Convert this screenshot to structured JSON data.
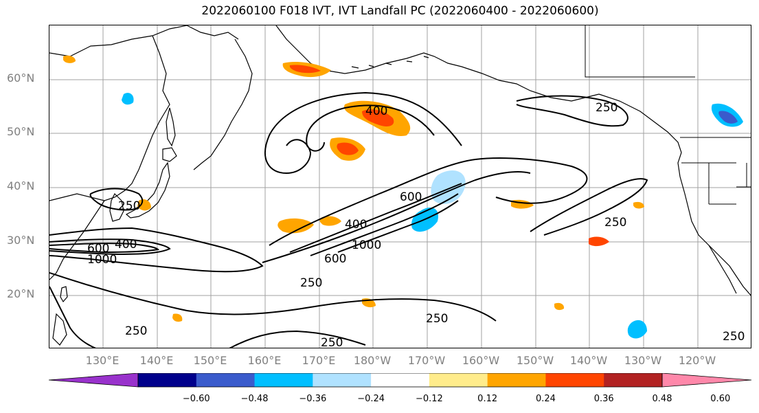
{
  "title": "2022060100 F018 IVT, IVT Landfall PC (2022060400 - 2022060600)",
  "lat_labels": [
    "60°N",
    "50°N",
    "40°N",
    "30°N",
    "20°N"
  ],
  "lon_labels": [
    "130°E",
    "140°E",
    "150°E",
    "160°E",
    "170°E",
    "180°W",
    "170°W",
    "160°W",
    "150°W",
    "140°W",
    "130°W",
    "120°W"
  ],
  "contour_labels": {
    "ivt_250_japan": "250",
    "ivt_600_west": "600",
    "ivt_400_west": "400",
    "ivt_1000_west": "1000",
    "ivt_400_north": "400",
    "ivt_250_alaska": "250",
    "ivt_600_mid": "600",
    "ivt_400_mid": "400",
    "ivt_1000_mid": "1000",
    "ivt_600_ar": "600",
    "ivt_250_ar": "250",
    "ivt_250_east": "250",
    "ivt_250_south": "250",
    "ivt_250_sw": "250",
    "ivt_250_bottom": "250",
    "ivt_250_corner": "250"
  },
  "colorbar": {
    "colors": [
      "#9932cc",
      "#00008b",
      "#3a5bcc",
      "#00bfff",
      "#b0e2ff",
      "#ffffff",
      "#ffec8b",
      "#ffa500",
      "#ff4500",
      "#b22222",
      "#ff88aa"
    ],
    "tick_labels": [
      "−0.60",
      "−0.48",
      "−0.36",
      "−0.24",
      "−0.12",
      "0.12",
      "0.24",
      "0.36",
      "0.48",
      "0.60"
    ]
  }
}
